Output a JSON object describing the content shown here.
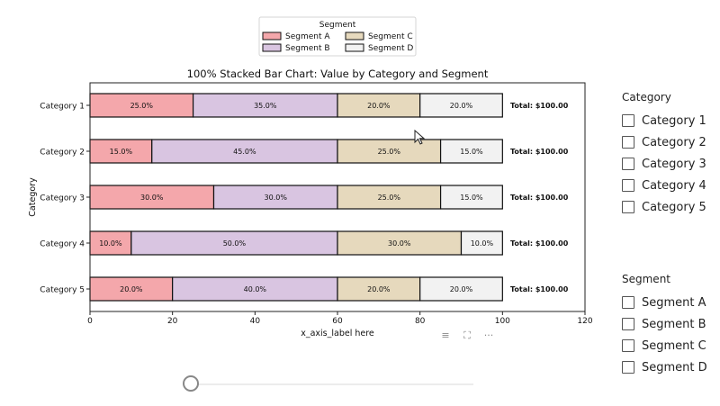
{
  "chart_data": {
    "type": "bar",
    "orientation": "horizontal",
    "stacked": true,
    "title": "100% Stacked Bar Chart: Value by Category and Segment",
    "xlabel": "x_axis_label here",
    "ylabel": "Category",
    "xlim": [
      0,
      120
    ],
    "xticks": [
      0,
      20,
      40,
      60,
      80,
      100,
      120
    ],
    "categories": [
      "Category 1",
      "Category 2",
      "Category 3",
      "Category 4",
      "Category 5"
    ],
    "series": [
      {
        "name": "Segment A",
        "values": [
          25,
          15,
          30,
          10,
          20
        ],
        "labels": [
          "25.0%",
          "15.0%",
          "30.0%",
          "10.0%",
          "20.0%"
        ],
        "color": "#f4a7ab"
      },
      {
        "name": "Segment B",
        "values": [
          35,
          45,
          30,
          50,
          40
        ],
        "labels": [
          "35.0%",
          "45.0%",
          "30.0%",
          "50.0%",
          "40.0%"
        ],
        "color": "#d9c5e1"
      },
      {
        "name": "Segment C",
        "values": [
          20,
          25,
          25,
          30,
          20
        ],
        "labels": [
          "20.0%",
          "25.0%",
          "25.0%",
          "30.0%",
          "20.0%"
        ],
        "color": "#e6d9bd"
      },
      {
        "name": "Segment D",
        "values": [
          20,
          15,
          15,
          10,
          20
        ],
        "labels": [
          "20.0%",
          "15.0%",
          "15.0%",
          "10.0%",
          "20.0%"
        ],
        "color": "#f2f2f2"
      }
    ],
    "totals": [
      "Total: $100.00",
      "Total: $100.00",
      "Total: $100.00",
      "Total: $100.00",
      "Total: $100.00"
    ],
    "legend": {
      "title": "Segment",
      "placement": "top-center",
      "columns": 2
    },
    "grid": false
  },
  "filters": {
    "category": {
      "title": "Category",
      "items": [
        "Category 1",
        "Category 2",
        "Category 3",
        "Category 4",
        "Category 5"
      ]
    },
    "segment": {
      "title": "Segment",
      "items": [
        "Segment A",
        "Segment B",
        "Segment C",
        "Segment D"
      ]
    }
  },
  "toolbar": {
    "icons": [
      "filter-icon",
      "expand-icon",
      "more-options-icon"
    ],
    "glyphs": [
      "≡",
      "⛶",
      "···"
    ]
  },
  "slider": {
    "value": 0
  }
}
